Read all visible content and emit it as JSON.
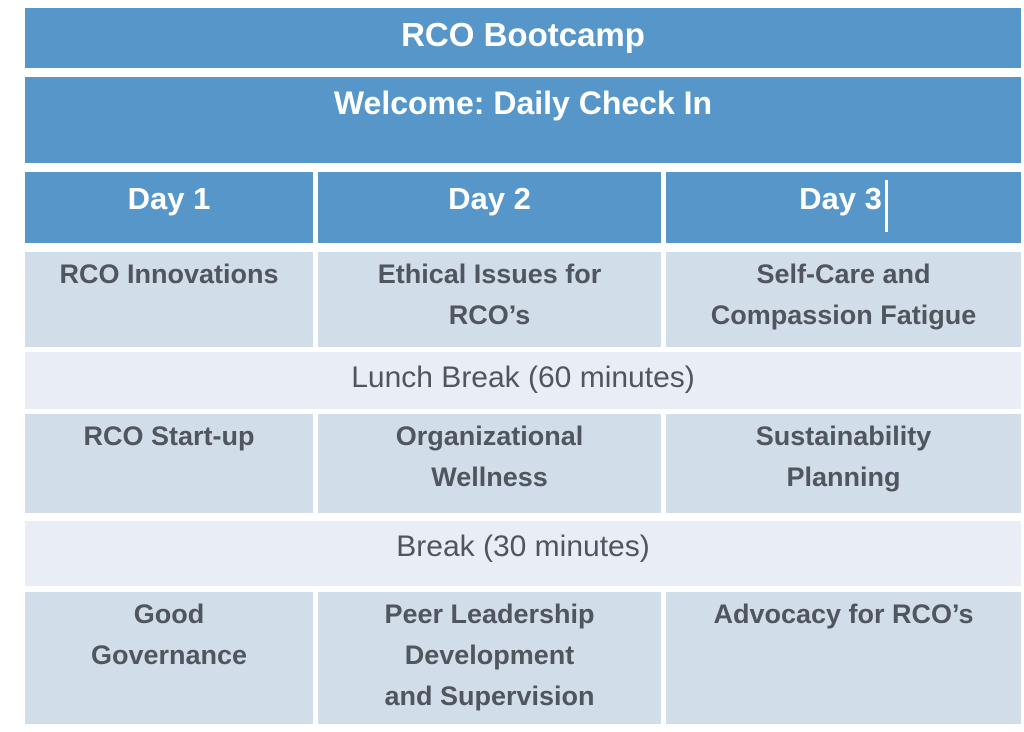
{
  "slide": {
    "title": "RCO Bootcamp",
    "subtitle": "Welcome: Daily Check In",
    "days": [
      "Day 1",
      "Day 2",
      "Day 3"
    ],
    "text_cursor": "visible after Day 3",
    "schedule": [
      {
        "type": "sessions",
        "items": [
          "RCO Innovations",
          "Ethical Issues for\nRCO’s",
          "Self-Care and\nCompassion Fatigue"
        ]
      },
      {
        "type": "break",
        "label": "Lunch Break (60 minutes)"
      },
      {
        "type": "sessions",
        "items": [
          "RCO Start-up",
          "Organizational\nWellness",
          "Sustainability\nPlanning"
        ]
      },
      {
        "type": "break",
        "label": "Break (30 minutes)"
      },
      {
        "type": "sessions",
        "items": [
          "Good\nGovernance",
          "Peer Leadership\nDevelopment\nand Supervision",
          "Advocacy for RCO’s"
        ]
      }
    ],
    "colors": {
      "header_blue": "#5696C9",
      "session_bg": "#D1DDE9",
      "break_bg": "#E9EDF5",
      "text_dark": "#50555E",
      "text_light": "#FFFFFF"
    }
  }
}
